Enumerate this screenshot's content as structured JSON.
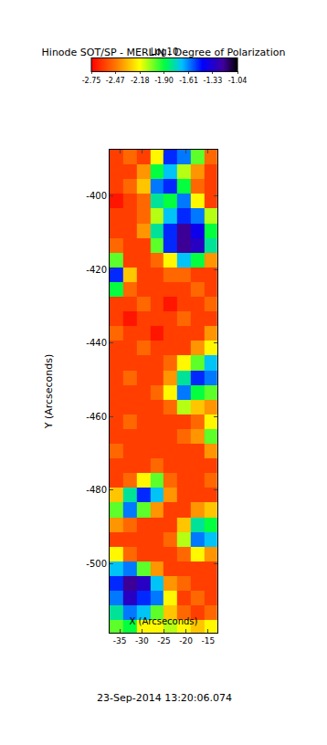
{
  "chart_data": {
    "type": "heatmap",
    "title": "Hinode SOT/SP - MERLIN : Degree of Polarization",
    "x_label": "X (Arcseconds)",
    "y_label": "Y (Arcseconds)",
    "annotations": [
      "23-Sep-2014 13:20:06.074"
    ],
    "xlim": [
      -37.3,
      -12.9
    ],
    "ylim": [
      -518.8,
      -387.4
    ],
    "xticks": [
      -35,
      -30,
      -25,
      -20,
      -15
    ],
    "yticks": [
      -400,
      -420,
      -440,
      -460,
      -480,
      -500
    ],
    "x": [
      -35.8,
      -32.7,
      -29.65,
      -26.6,
      -23.55,
      -20.5,
      -17.45,
      -14.4
    ],
    "y": [
      -389.4,
      -393.4,
      -397.4,
      -401.4,
      -405.4,
      -409.4,
      -413.4,
      -417.4,
      -421.4,
      -425.4,
      -429.4,
      -433.4,
      -437.4,
      -441.4,
      -445.4,
      -449.4,
      -453.4,
      -457.4,
      -461.4,
      -465.4,
      -469.4,
      -473.4,
      -477.4,
      -481.4,
      -485.4,
      -489.4,
      -493.4,
      -497.4,
      -501.4,
      -505.4,
      -509.4,
      -513.4,
      -517.4
    ],
    "cells": [
      [
        -2.6,
        -2.5,
        -2.6,
        -2.2,
        -1.5,
        -1.6,
        -2.0,
        -2.5
      ],
      [
        -2.6,
        -2.6,
        -2.4,
        -1.9,
        -1.7,
        -2.1,
        -2.4,
        -2.6
      ],
      [
        -2.6,
        -2.5,
        -2.3,
        -1.6,
        -1.5,
        -1.9,
        -2.5,
        -2.6
      ],
      [
        -2.7,
        -2.6,
        -2.5,
        -1.8,
        -1.9,
        -1.6,
        -2.2,
        -2.6
      ],
      [
        -2.6,
        -2.6,
        -2.5,
        -2.1,
        -1.7,
        -1.5,
        -1.6,
        -2.1
      ],
      [
        -2.6,
        -2.6,
        -2.4,
        -1.8,
        -1.5,
        -1.2,
        -1.4,
        -1.9
      ],
      [
        -2.5,
        -2.6,
        -2.6,
        -2.0,
        -1.5,
        -1.2,
        -1.3,
        -1.8
      ],
      [
        -2.0,
        -2.6,
        -2.6,
        -2.5,
        -2.2,
        -1.7,
        -1.9,
        -2.4
      ],
      [
        -1.5,
        -2.3,
        -2.6,
        -2.6,
        -2.5,
        -2.5,
        -2.6,
        -2.6
      ],
      [
        -1.9,
        -2.5,
        -2.6,
        -2.6,
        -2.6,
        -2.6,
        -2.5,
        -2.6
      ],
      [
        -2.6,
        -2.6,
        -2.5,
        -2.6,
        -2.7,
        -2.6,
        -2.6,
        -2.5
      ],
      [
        -2.6,
        -2.7,
        -2.6,
        -2.6,
        -2.6,
        -2.5,
        -2.6,
        -2.6
      ],
      [
        -2.5,
        -2.6,
        -2.6,
        -2.7,
        -2.6,
        -2.6,
        -2.6,
        -2.4
      ],
      [
        -2.6,
        -2.6,
        -2.5,
        -2.6,
        -2.6,
        -2.6,
        -2.4,
        -2.2
      ],
      [
        -2.6,
        -2.6,
        -2.6,
        -2.6,
        -2.5,
        -2.2,
        -2.0,
        -1.7
      ],
      [
        -2.6,
        -2.5,
        -2.6,
        -2.6,
        -2.4,
        -1.8,
        -1.5,
        -1.6
      ],
      [
        -2.6,
        -2.6,
        -2.6,
        -2.5,
        -2.2,
        -1.6,
        -1.9,
        -2.0
      ],
      [
        -2.6,
        -2.6,
        -2.6,
        -2.6,
        -2.5,
        -2.1,
        -2.3,
        -2.4
      ],
      [
        -2.6,
        -2.5,
        -2.6,
        -2.6,
        -2.6,
        -2.6,
        -2.5,
        -2.2
      ],
      [
        -2.6,
        -2.6,
        -2.6,
        -2.6,
        -2.6,
        -2.5,
        -2.4,
        -2.0
      ],
      [
        -2.5,
        -2.6,
        -2.6,
        -2.6,
        -2.6,
        -2.6,
        -2.6,
        -2.4
      ],
      [
        -2.6,
        -2.6,
        -2.6,
        -2.5,
        -2.6,
        -2.6,
        -2.6,
        -2.6
      ],
      [
        -2.6,
        -2.5,
        -2.2,
        -2.0,
        -2.5,
        -2.6,
        -2.6,
        -2.5
      ],
      [
        -2.3,
        -1.8,
        -1.5,
        -1.7,
        -2.4,
        -2.6,
        -2.6,
        -2.6
      ],
      [
        -2.0,
        -1.6,
        -2.0,
        -2.4,
        -2.6,
        -2.6,
        -2.4,
        -2.3
      ],
      [
        -2.4,
        -2.5,
        -2.6,
        -2.6,
        -2.6,
        -2.3,
        -1.8,
        -1.9
      ],
      [
        -2.6,
        -2.6,
        -2.6,
        -2.6,
        -2.5,
        -2.1,
        -1.6,
        -1.7
      ],
      [
        -2.2,
        -2.5,
        -2.6,
        -2.6,
        -2.6,
        -2.5,
        -2.2,
        -2.4
      ],
      [
        -1.7,
        -1.6,
        -2.0,
        -2.4,
        -2.6,
        -2.6,
        -2.6,
        -2.6
      ],
      [
        -1.5,
        -1.2,
        -1.3,
        -1.7,
        -2.4,
        -2.5,
        -2.6,
        -2.6
      ],
      [
        -1.6,
        -1.3,
        -1.5,
        -1.6,
        -2.2,
        -2.6,
        -2.5,
        -2.6
      ],
      [
        -1.8,
        -1.6,
        -1.7,
        -2.0,
        -2.3,
        -2.5,
        -2.6,
        -2.5
      ],
      [
        -2.0,
        -1.9,
        -2.2,
        -2.2,
        -2.1,
        -2.2,
        -2.3,
        -2.2
      ]
    ],
    "colorbar": {
      "title": "Log10",
      "range": [
        -2.75,
        -1.04
      ],
      "ticks": [
        -2.75,
        -2.47,
        -2.18,
        {
          "value": -1.9,
          "label": "-1.90"
        },
        -1.61,
        -1.33,
        -1.04
      ]
    }
  }
}
